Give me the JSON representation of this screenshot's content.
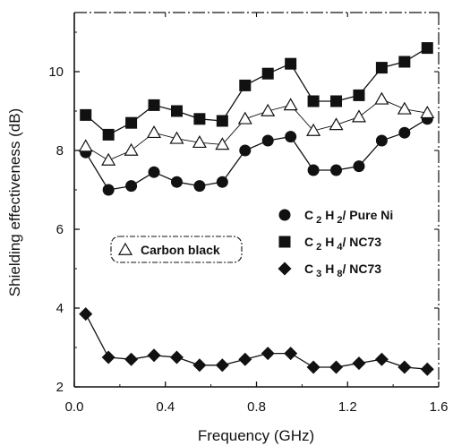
{
  "chart_data": {
    "type": "line",
    "xlabel": "Frequency (GHz)",
    "ylabel": "Shielding effectiveness (dB)",
    "xlim": [
      0.0,
      1.6
    ],
    "ylim": [
      2,
      11.5
    ],
    "xticks": [
      "0.0",
      "0.4",
      "0.8",
      "1.2",
      "1.6"
    ],
    "yticks": [
      "2",
      "4",
      "6",
      "8",
      "10"
    ],
    "grid": false,
    "x": [
      0.05,
      0.15,
      0.25,
      0.35,
      0.45,
      0.55,
      0.65,
      0.75,
      0.85,
      0.95,
      1.05,
      1.15,
      1.25,
      1.35,
      1.45,
      1.55
    ],
    "series": [
      {
        "name": "C2H2/ Pure Ni",
        "name_parts": [
          "C",
          "2",
          "H",
          "2",
          "/ Pure Ni"
        ],
        "marker": "circle",
        "values": [
          7.95,
          7.0,
          7.1,
          7.45,
          7.2,
          7.1,
          7.2,
          8.0,
          8.25,
          8.35,
          7.5,
          7.5,
          7.6,
          8.25,
          8.45,
          8.8
        ]
      },
      {
        "name": "C2H4/ NC73",
        "name_parts": [
          "C",
          "2",
          "H",
          "4",
          "/ NC73"
        ],
        "marker": "square",
        "values": [
          8.9,
          8.4,
          8.7,
          9.15,
          9.0,
          8.8,
          8.75,
          9.65,
          9.95,
          10.2,
          9.25,
          9.25,
          9.4,
          10.1,
          10.25,
          10.6
        ]
      },
      {
        "name": "C3H8/ NC73",
        "name_parts": [
          "C",
          "3",
          "H",
          "8",
          "/ NC73"
        ],
        "marker": "diamond",
        "values": [
          3.85,
          2.75,
          2.7,
          2.8,
          2.75,
          2.55,
          2.55,
          2.7,
          2.85,
          2.85,
          2.5,
          2.5,
          2.6,
          2.7,
          2.5,
          2.45
        ]
      },
      {
        "name": "Carbon black",
        "marker": "triangle-open",
        "values": [
          8.1,
          7.75,
          8.0,
          8.45,
          8.3,
          8.2,
          8.15,
          8.8,
          9.0,
          9.15,
          8.5,
          8.65,
          8.85,
          9.3,
          9.05,
          8.95
        ]
      }
    ],
    "legend": {
      "placement": "center-right",
      "entries": [
        "C2H2/ Pure Ni",
        "C2H4/ NC73",
        "C3H8/ NC73"
      ]
    },
    "annotation": {
      "text": "Carbon black",
      "marker": "triangle-open",
      "placement": "center-left"
    }
  }
}
